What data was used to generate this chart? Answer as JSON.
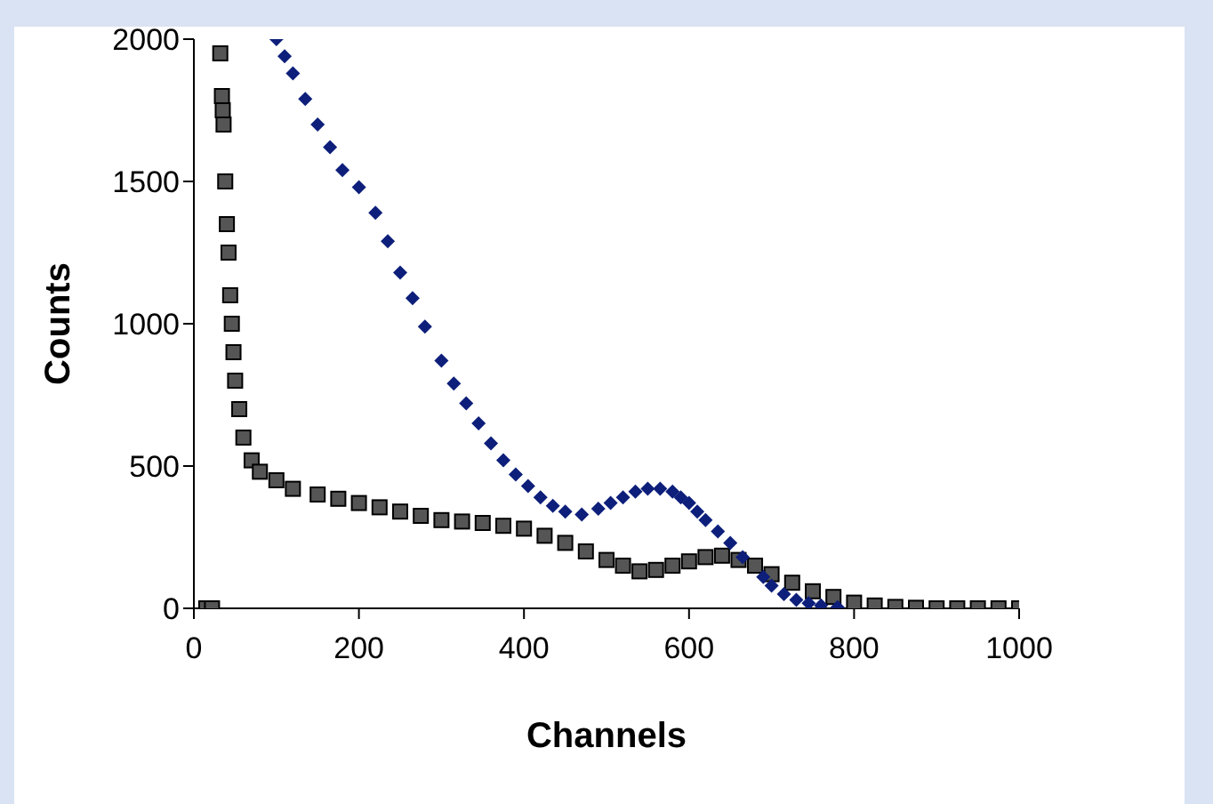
{
  "chart_data": {
    "type": "scatter",
    "xlabel": "Channels",
    "ylabel": "Counts",
    "xlim": [
      0,
      1000
    ],
    "ylim": [
      0,
      2000
    ],
    "xticks": [
      0,
      200,
      400,
      600,
      800,
      1000
    ],
    "yticks": [
      0,
      500,
      1000,
      1500,
      2000
    ],
    "series": [
      {
        "color": "#0d1f7a",
        "marker": "diamond",
        "x": [
          100,
          110,
          120,
          135,
          150,
          165,
          180,
          200,
          220,
          235,
          250,
          265,
          280,
          300,
          315,
          330,
          345,
          360,
          375,
          390,
          405,
          420,
          435,
          450,
          470,
          490,
          505,
          520,
          535,
          550,
          565,
          580,
          590,
          600,
          610,
          620,
          635,
          650,
          665,
          690,
          700,
          715,
          730,
          745,
          760,
          780
        ],
        "values": [
          2000,
          1940,
          1880,
          1790,
          1700,
          1620,
          1540,
          1480,
          1390,
          1290,
          1180,
          1090,
          990,
          870,
          790,
          720,
          650,
          580,
          520,
          470,
          430,
          390,
          360,
          340,
          330,
          350,
          370,
          390,
          410,
          420,
          420,
          410,
          390,
          370,
          340,
          310,
          270,
          230,
          180,
          110,
          80,
          50,
          30,
          18,
          10,
          4
        ]
      },
      {
        "color": "#555555",
        "marker": "square",
        "x": [
          15,
          22,
          32,
          34,
          35,
          36,
          38,
          40,
          42,
          44,
          46,
          48,
          50,
          55,
          60,
          70,
          80,
          100,
          120,
          150,
          175,
          200,
          225,
          250,
          275,
          300,
          325,
          350,
          375,
          400,
          425,
          450,
          475,
          500,
          520,
          540,
          560,
          580,
          600,
          620,
          640,
          660,
          680,
          700,
          725,
          750,
          775,
          800,
          825,
          850,
          875,
          900,
          925,
          950,
          975,
          1000
        ],
        "values": [
          0,
          0,
          1950,
          1800,
          1750,
          1700,
          1500,
          1350,
          1250,
          1100,
          1000,
          900,
          800,
          700,
          600,
          520,
          480,
          450,
          420,
          400,
          385,
          370,
          355,
          340,
          325,
          310,
          305,
          300,
          290,
          280,
          255,
          230,
          200,
          170,
          150,
          130,
          135,
          150,
          165,
          180,
          185,
          170,
          150,
          120,
          90,
          60,
          40,
          20,
          10,
          5,
          2,
          0,
          0,
          0,
          0,
          0
        ]
      }
    ]
  }
}
